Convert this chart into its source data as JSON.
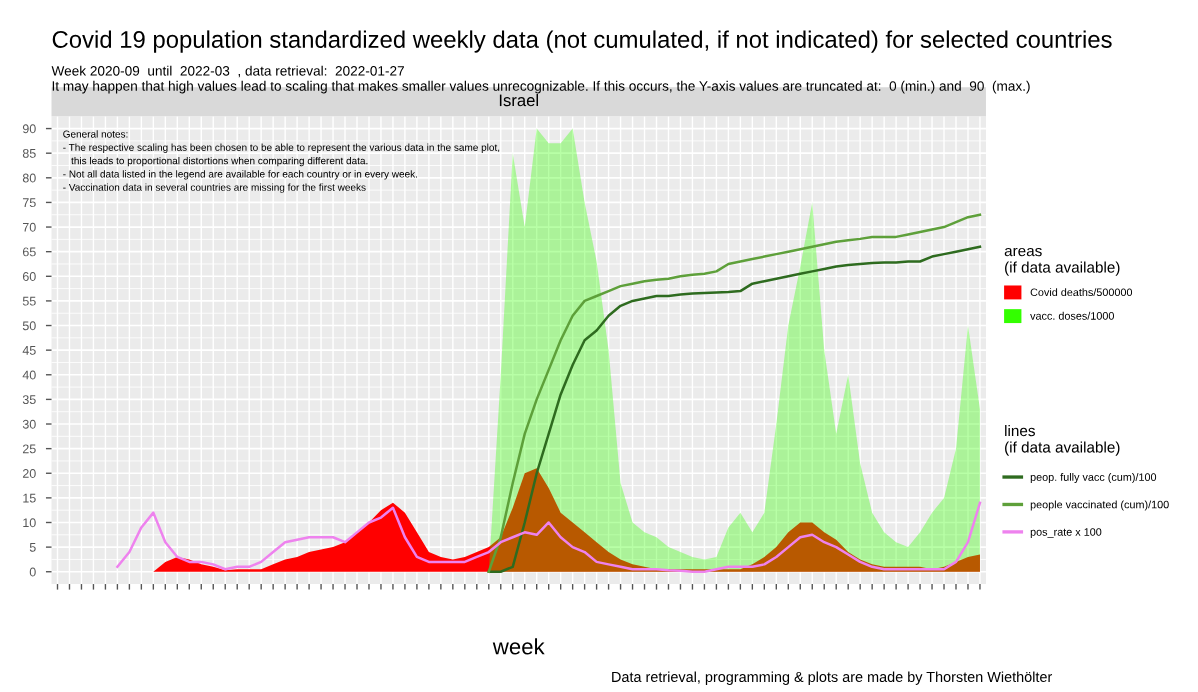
{
  "chart_data": {
    "type": "area",
    "title": "Covid 19 population standardized weekly data (not cumulated, if not indicated) for selected countries",
    "subtitle": "Week 2020-09  until  2022-03  , data retrieval:  2022-01-27\nIt may happen that high values lead to scaling that makes smaller values unrecognizable. If this occurs, the Y-axis values are truncated at:  0 (min.) and  90  (max.)",
    "xlabel": "week",
    "legend_title": [
      "areas\n(if data available)",
      "lines\n(if data available)"
    ],
    "annotations": [
      "Israel",
      "General notes:\n- The respective scaling has been chosen to be able to represent the various data in the same plot,\n   this leads to proportional distortions when comparing different data.\n- Not all data listed in the legend are available for each country or in every week.\n- Vaccination data in several countries are missing for the first weeks",
      "Data retrieval, programming & plots are made by Thorsten Wiethölter"
    ],
    "categories": [
      null,
      null,
      null,
      null,
      null,
      null,
      null,
      null,
      null,
      null,
      null,
      null,
      null,
      null,
      null,
      null,
      null,
      null,
      null,
      null,
      null,
      null,
      null,
      null,
      null,
      null,
      null,
      null,
      null,
      null,
      null,
      null,
      null,
      null,
      null,
      null,
      null,
      null,
      null,
      null,
      null,
      null,
      null,
      null,
      null,
      null,
      null,
      null,
      null,
      null,
      null,
      null,
      null,
      null,
      null,
      null,
      null,
      null,
      null,
      null,
      null,
      null,
      null,
      null,
      null,
      null,
      null,
      null,
      null,
      null,
      null,
      null,
      null,
      null,
      null,
      null,
      null,
      null
    ],
    "ylim": [
      -2.5,
      92.5
    ],
    "yticks": [
      0,
      5,
      10,
      15,
      20,
      25,
      30,
      35,
      40,
      45,
      50,
      55,
      60,
      65,
      70,
      75,
      80,
      85,
      90
    ],
    "grid": true,
    "legend": "right",
    "tick_labels": "y",
    "series": [
      {
        "name": "Covid deaths/500000",
        "color": "#ff0000",
        "values": [
          null,
          null,
          null,
          null,
          null,
          null,
          null,
          null,
          0,
          2,
          3,
          2.5,
          1.5,
          1,
          0.3,
          0.5,
          0.5,
          0.5,
          1.5,
          2.5,
          3,
          4,
          4.5,
          5,
          6,
          8,
          10,
          12.5,
          14,
          12,
          8,
          4,
          3,
          2.5,
          3,
          4,
          5,
          7,
          13,
          20,
          21,
          17,
          12,
          10,
          8,
          6,
          4,
          2.5,
          1.5,
          1,
          0.5,
          0.5,
          0.5,
          0.5,
          0.5,
          0.5,
          0.5,
          0.5,
          1.5,
          3,
          5,
          8,
          10,
          10,
          8,
          6.5,
          4,
          2.5,
          1.5,
          1,
          1,
          1,
          1,
          0.5,
          1,
          2,
          3,
          3.5
        ]
      },
      {
        "name": "vacc. doses/1000",
        "color": "#33ff00",
        "values": [
          null,
          null,
          null,
          null,
          null,
          null,
          null,
          null,
          null,
          null,
          null,
          null,
          null,
          null,
          null,
          null,
          null,
          null,
          null,
          null,
          null,
          null,
          null,
          null,
          null,
          null,
          null,
          null,
          null,
          null,
          null,
          null,
          null,
          null,
          null,
          null,
          0,
          40,
          85,
          70,
          90,
          87,
          87,
          90,
          75,
          63,
          45,
          18,
          10,
          8,
          7,
          5,
          4,
          3,
          2.5,
          3,
          9,
          12,
          8,
          12,
          30,
          50,
          62,
          75,
          45,
          28,
          40,
          22,
          12,
          8,
          6,
          5,
          8,
          12,
          15,
          25,
          50,
          33
        ]
      },
      {
        "name": "peop. fully vacc (cum)/100",
        "type": "line",
        "color": "#2e6b1f",
        "values": [
          null,
          null,
          null,
          null,
          null,
          null,
          null,
          null,
          null,
          null,
          null,
          null,
          null,
          null,
          null,
          null,
          null,
          null,
          null,
          null,
          null,
          null,
          null,
          null,
          null,
          null,
          null,
          null,
          null,
          null,
          null,
          null,
          null,
          null,
          null,
          null,
          0,
          0,
          1,
          10,
          20,
          28,
          36,
          42,
          47,
          49,
          52,
          54,
          55,
          55.5,
          56,
          56,
          56.3,
          56.5,
          56.6,
          56.7,
          56.8,
          57,
          58.5,
          59,
          59.5,
          60,
          60.5,
          61,
          61.5,
          62,
          62.3,
          62.5,
          62.7,
          62.8,
          62.8,
          63,
          63,
          64,
          64.5,
          65,
          65.5,
          66
        ]
      },
      {
        "name": "people vaccinated (cum)/100",
        "type": "line",
        "color": "#5ea03a",
        "values": [
          null,
          null,
          null,
          null,
          null,
          null,
          null,
          null,
          null,
          null,
          null,
          null,
          null,
          null,
          null,
          null,
          null,
          null,
          null,
          null,
          null,
          null,
          null,
          null,
          null,
          null,
          null,
          null,
          null,
          null,
          null,
          null,
          null,
          null,
          null,
          null,
          0,
          7,
          18,
          28,
          35,
          41,
          47,
          52,
          55,
          56,
          57,
          58,
          58.5,
          59,
          59.3,
          59.5,
          60,
          60.3,
          60.5,
          61,
          62.5,
          63,
          63.5,
          64,
          64.5,
          65,
          65.5,
          66,
          66.5,
          67,
          67.3,
          67.6,
          68,
          68,
          68,
          68.5,
          69,
          69.5,
          70,
          71,
          72,
          72.5
        ]
      },
      {
        "name": "pos_rate x 100",
        "type": "line",
        "color": "#ee82ee",
        "values": [
          null,
          null,
          null,
          null,
          null,
          1,
          4,
          9,
          12,
          6,
          3,
          2,
          2,
          1.5,
          0.5,
          1,
          1,
          2,
          4,
          6,
          6.5,
          7,
          7,
          7,
          6,
          8,
          10,
          11,
          13,
          7,
          3,
          2,
          2,
          2,
          2,
          3,
          4,
          6,
          7,
          8,
          7.5,
          10,
          7,
          5,
          4,
          2,
          1.5,
          1,
          0.5,
          0.5,
          0.5,
          0.3,
          0.2,
          0,
          0,
          0.5,
          1,
          1,
          1,
          1.5,
          3,
          5,
          7,
          7.5,
          6,
          5,
          3.5,
          2,
          1,
          0.5,
          0.5,
          0.5,
          0.5,
          0.5,
          0.5,
          2,
          6,
          14
        ]
      }
    ]
  }
}
